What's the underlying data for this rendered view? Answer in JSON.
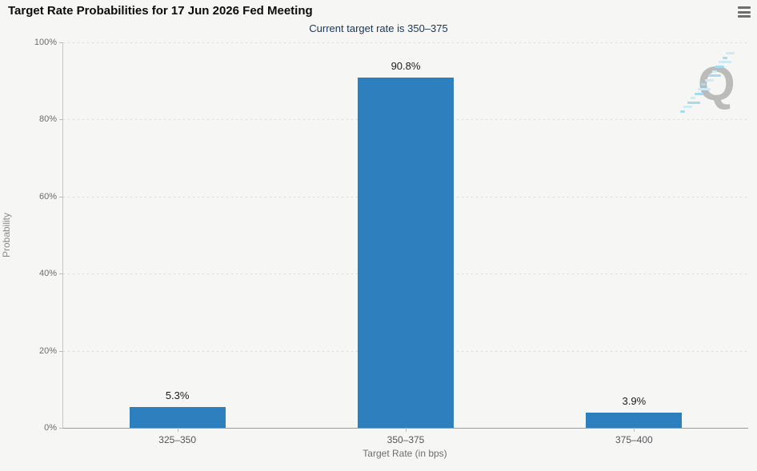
{
  "header": {
    "title": "Target Rate Probabilities for 17 Jun 2026 Fed Meeting",
    "menu_icon": "hamburger-menu-icon"
  },
  "chart_data": {
    "type": "bar",
    "title": "Target Rate Probabilities for 17 Jun 2026 Fed Meeting",
    "subtitle": "Current target rate is 350–375",
    "categories": [
      "325–350",
      "350–375",
      "375–400"
    ],
    "values": [
      5.3,
      90.8,
      3.9
    ],
    "value_labels": [
      "5.3%",
      "90.8%",
      "3.9%"
    ],
    "xlabel": "Target Rate (in bps)",
    "ylabel": "Probability",
    "ylim": [
      0,
      100
    ],
    "yticks": [
      0,
      20,
      40,
      60,
      80,
      100
    ],
    "ytick_labels": [
      "0%",
      "20%",
      "40%",
      "60%",
      "80%",
      "100%"
    ],
    "grid": "horizontal-dotted",
    "legend_position": "none",
    "bar_color": "#2e7fbe"
  },
  "watermark": {
    "letter": "Q"
  },
  "colors": {
    "background": "#f6f6f4",
    "bar": "#2e7fbe",
    "subtitle_text": "#17375e",
    "axis_text": "#6d6d6d",
    "watermark_gray": "#b5b5b3",
    "watermark_blue": "#9fd8ef"
  }
}
